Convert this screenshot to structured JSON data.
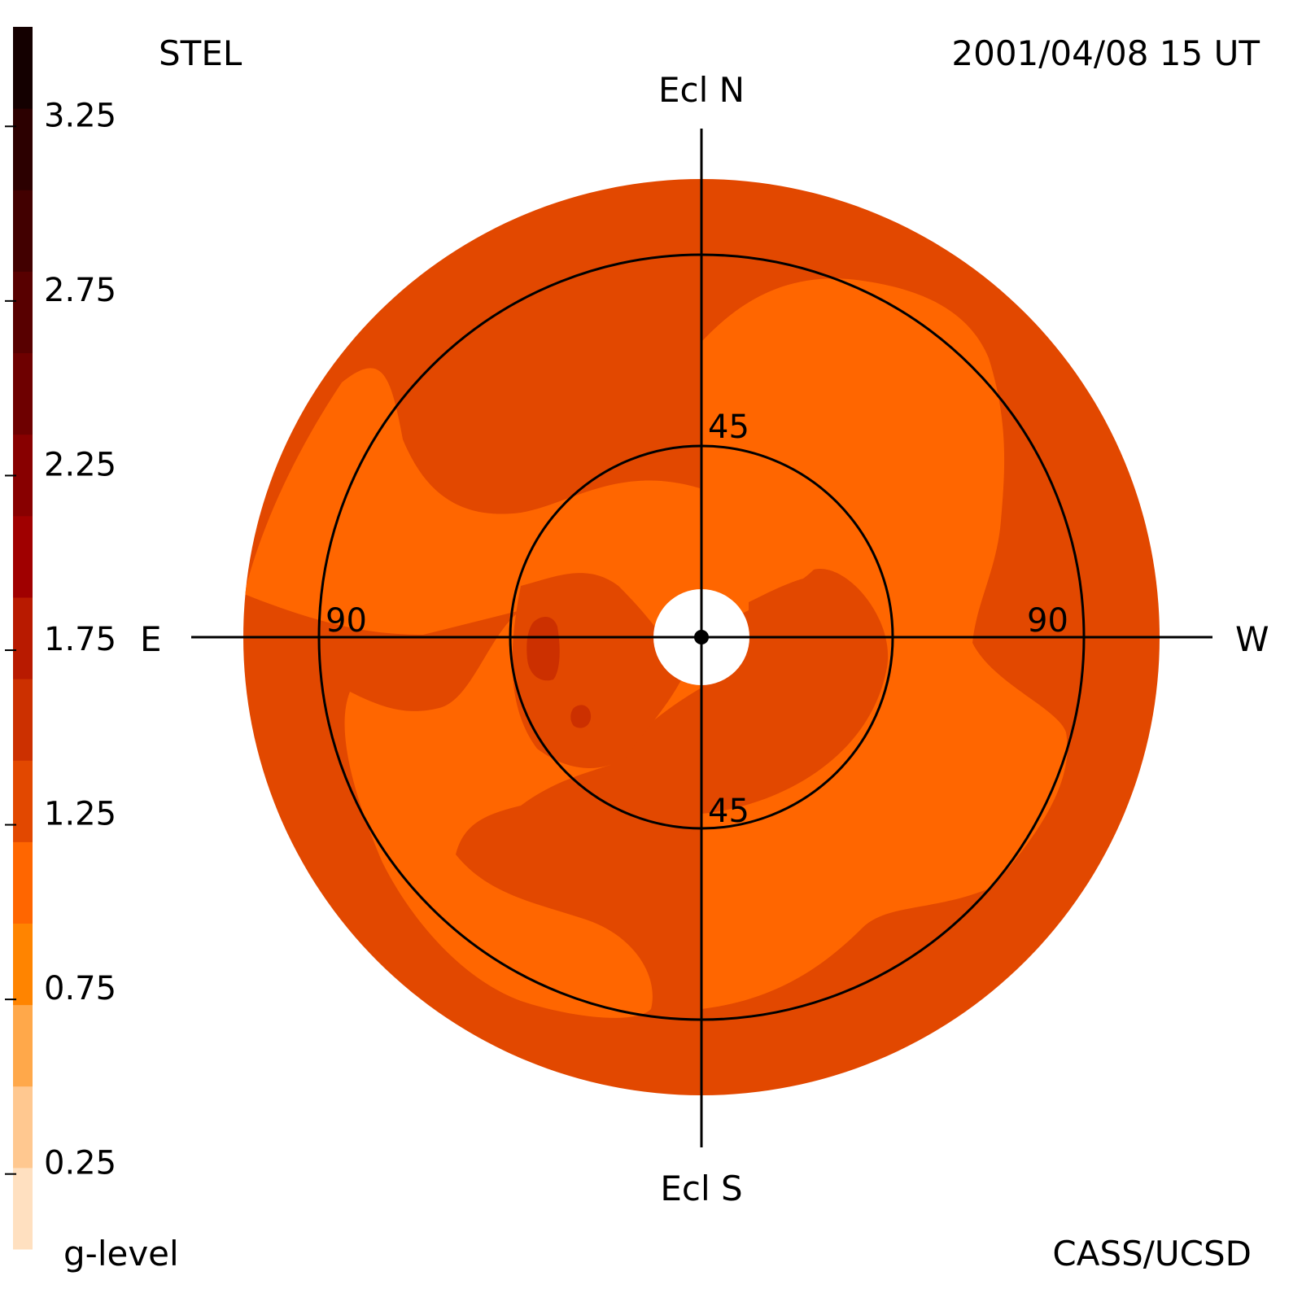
{
  "header": {
    "instrument": "STEL",
    "datetime": "2001/04/08 15 UT",
    "credit": "CASS/UCSD"
  },
  "directions": {
    "north": "Ecl N",
    "south": "Ecl S",
    "east": "E",
    "west": "W"
  },
  "rings": {
    "inner_top": "45",
    "inner_bottom": "45",
    "outer_left": "90",
    "outer_right": "90"
  },
  "colorbar": {
    "label": "g-level",
    "ticks": [
      "3.25",
      "2.75",
      "2.25",
      "1.75",
      "1.25",
      "0.75",
      "0.25"
    ],
    "colors": [
      "#ffe0c0",
      "#ffc890",
      "#ffa84a",
      "#ff8400",
      "#ff6600",
      "#e24800",
      "#cc3000",
      "#b81a00",
      "#a00000",
      "#880000",
      "#6e0000",
      "#580000",
      "#420000",
      "#2c0000",
      "#140000"
    ]
  },
  "chart_data": {
    "type": "heatmap",
    "projection": "polar sky map (fisheye), center = anti-solar/sun direction",
    "elongation_rings_deg": [
      45,
      90
    ],
    "color_scale": {
      "variable": "g-level",
      "range": [
        0.0,
        3.5
      ],
      "step": 0.25
    },
    "grid": true
  }
}
